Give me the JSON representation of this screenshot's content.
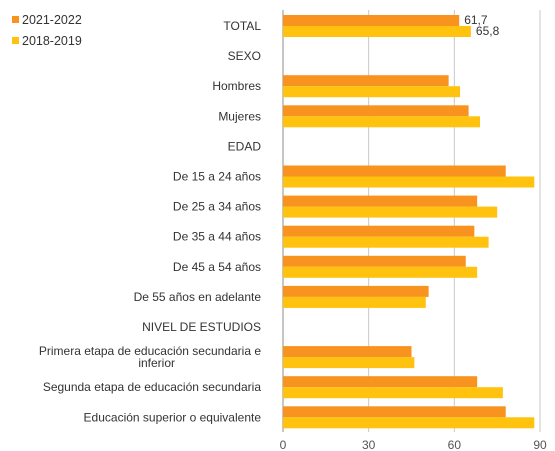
{
  "chart_data": {
    "type": "bar",
    "orientation": "horizontal",
    "categories": [
      "TOTAL",
      "SEXO",
      "Hombres",
      "Mujeres",
      "EDAD",
      "De 15 a 24 años",
      "De 25 a 34 años",
      "De 35 a 44 años",
      "De 45 a 54 años",
      "De 55 años en adelante",
      "NIVEL DE ESTUDIOS",
      "Primera etapa de educación secundaria e inferior",
      "Segunda etapa de educación secundaria",
      "Educación superior o equivalente"
    ],
    "series": [
      {
        "name": "2021-2022",
        "color": "#F7931E",
        "values": [
          61.7,
          null,
          58,
          65,
          null,
          78,
          68,
          67,
          64,
          51,
          null,
          45,
          68,
          78
        ]
      },
      {
        "name": "2018-2019",
        "color": "#FFC20E",
        "values": [
          65.8,
          null,
          62,
          69,
          null,
          88,
          75,
          72,
          68,
          50,
          null,
          46,
          77,
          88
        ]
      }
    ],
    "data_labels": [
      "61,7",
      "65,8"
    ],
    "x_ticks": [
      "0",
      "30",
      "60",
      "90"
    ],
    "xlim": [
      0,
      90
    ],
    "grid": "vertical",
    "legend_position": "top-left"
  }
}
